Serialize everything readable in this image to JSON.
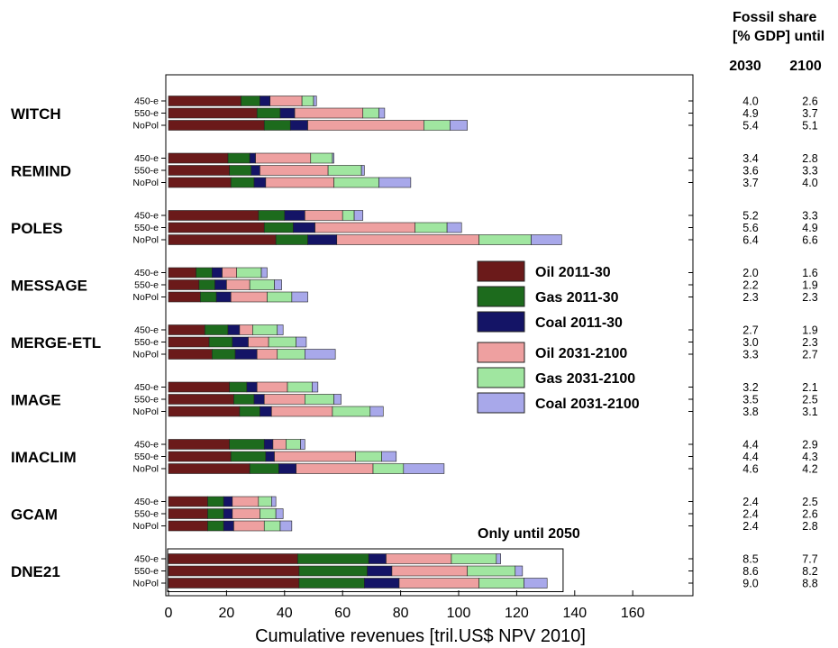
{
  "chart_data": {
    "type": "bar",
    "orientation": "horizontal",
    "stacked": true,
    "xlabel": "Cumulative revenues [tril.US$ NPV 2010]",
    "xlim": [
      0,
      170
    ],
    "x_ticks": [
      "0",
      "20",
      "40",
      "60",
      "80",
      "100",
      "120",
      "140",
      "160"
    ],
    "x_tick_values": [
      0,
      20,
      40,
      60,
      80,
      100,
      120,
      140,
      160
    ],
    "grid": false,
    "legend_position": "center-right",
    "scenarios": [
      "450-e",
      "550-e",
      "NoPol"
    ],
    "series": [
      {
        "name": "Oil 2011-30",
        "color": "#6b1a1a"
      },
      {
        "name": "Gas 2011-30",
        "color": "#1d6b1d"
      },
      {
        "name": "Coal 2011-30",
        "color": "#141466"
      },
      {
        "name": "Oil 2031-2100",
        "color": "#eea0a0"
      },
      {
        "name": "Gas 2031-2100",
        "color": "#a0e6a0"
      },
      {
        "name": "Coal 2031-2100",
        "color": "#a8a8ea"
      }
    ],
    "models": [
      {
        "name": "WITCH",
        "bars": [
          {
            "scenario": "450-e",
            "values": [
              25,
              6.5,
              3.5,
              11,
              4,
              1
            ]
          },
          {
            "scenario": "550-e",
            "values": [
              30.5,
              8,
              5,
              23.5,
              5.5,
              2
            ]
          },
          {
            "scenario": "NoPol",
            "values": [
              33,
              9,
              6,
              40,
              9,
              6
            ]
          }
        ],
        "share": [
          [
            "4.0",
            "2.6"
          ],
          [
            "4.9",
            "3.7"
          ],
          [
            "5.4",
            "5.1"
          ]
        ]
      },
      {
        "name": "REMIND",
        "bars": [
          {
            "scenario": "450-e",
            "values": [
              20.5,
              7.5,
              2,
              19,
              7.5,
              0.5
            ]
          },
          {
            "scenario": "550-e",
            "values": [
              21,
              7.5,
              3,
              23.5,
              11.5,
              1
            ]
          },
          {
            "scenario": "NoPol",
            "values": [
              21.5,
              8,
              4,
              23.5,
              15.5,
              11
            ]
          }
        ],
        "share": [
          [
            "3.4",
            "2.8"
          ],
          [
            "3.6",
            "3.3"
          ],
          [
            "3.7",
            "4.0"
          ]
        ]
      },
      {
        "name": "POLES",
        "bars": [
          {
            "scenario": "450-e",
            "values": [
              31,
              9,
              7,
              13,
              4,
              3
            ]
          },
          {
            "scenario": "550-e",
            "values": [
              33,
              10,
              7.5,
              34.5,
              11,
              5
            ]
          },
          {
            "scenario": "NoPol",
            "values": [
              37,
              11,
              10,
              49,
              18,
              10.5
            ]
          }
        ],
        "share": [
          [
            "5.2",
            "3.3"
          ],
          [
            "5.6",
            "4.9"
          ],
          [
            "6.4",
            "6.6"
          ]
        ]
      },
      {
        "name": "MESSAGE",
        "bars": [
          {
            "scenario": "450-e",
            "values": [
              9.5,
              5.5,
              3.5,
              5,
              8.5,
              2
            ]
          },
          {
            "scenario": "550-e",
            "values": [
              10.5,
              5.5,
              4,
              8,
              8.5,
              2.5
            ]
          },
          {
            "scenario": "NoPol",
            "values": [
              11,
              5.5,
              5,
              12.5,
              8.5,
              5.5
            ]
          }
        ],
        "share": [
          [
            "2.0",
            "1.6"
          ],
          [
            "2.2",
            "1.9"
          ],
          [
            "2.3",
            "2.3"
          ]
        ]
      },
      {
        "name": "MERGE-ETL",
        "bars": [
          {
            "scenario": "450-e",
            "values": [
              12.5,
              8,
              4,
              4.5,
              8.5,
              2
            ]
          },
          {
            "scenario": "550-e",
            "values": [
              14,
              8,
              5.5,
              7,
              9.5,
              3.5
            ]
          },
          {
            "scenario": "NoPol",
            "values": [
              15,
              8,
              7.5,
              7,
              9.5,
              10.5
            ]
          }
        ],
        "share": [
          [
            "2.7",
            "1.9"
          ],
          [
            "3.0",
            "2.3"
          ],
          [
            "3.3",
            "2.7"
          ]
        ]
      },
      {
        "name": "IMAGE",
        "bars": [
          {
            "scenario": "450-e",
            "values": [
              21,
              6,
              3.5,
              10.5,
              8.5,
              2
            ]
          },
          {
            "scenario": "550-e",
            "values": [
              22.5,
              7,
              3.5,
              14,
              10,
              2.5
            ]
          },
          {
            "scenario": "NoPol",
            "values": [
              24.5,
              7,
              4,
              21,
              13,
              4.5
            ]
          }
        ],
        "share": [
          [
            "3.2",
            "2.1"
          ],
          [
            "3.5",
            "2.5"
          ],
          [
            "3.8",
            "3.1"
          ]
        ]
      },
      {
        "name": "IMACLIM",
        "bars": [
          {
            "scenario": "450-e",
            "values": [
              21,
              12,
              3,
              4.5,
              5,
              1.5
            ]
          },
          {
            "scenario": "550-e",
            "values": [
              21.5,
              12,
              3,
              28,
              9,
              5
            ]
          },
          {
            "scenario": "NoPol",
            "values": [
              28,
              10,
              6,
              26.5,
              10.5,
              14
            ]
          }
        ],
        "share": [
          [
            "4.4",
            "2.9"
          ],
          [
            "4.4",
            "4.3"
          ],
          [
            "4.6",
            "4.2"
          ]
        ]
      },
      {
        "name": "GCAM",
        "bars": [
          {
            "scenario": "450-e",
            "values": [
              13.5,
              5.5,
              3,
              9,
              4.5,
              1.5
            ]
          },
          {
            "scenario": "550-e",
            "values": [
              13.5,
              5.5,
              3,
              9.5,
              5.5,
              2.5
            ]
          },
          {
            "scenario": "NoPol",
            "values": [
              13.5,
              5.5,
              3.5,
              10.5,
              5.5,
              4
            ]
          }
        ],
        "share": [
          [
            "2.4",
            "2.5"
          ],
          [
            "2.4",
            "2.6"
          ],
          [
            "2.4",
            "2.8"
          ]
        ]
      },
      {
        "name": "DNE21",
        "bars": [
          {
            "scenario": "450-e",
            "values": [
              44.5,
              24.5,
              6,
              22.5,
              15.5,
              1.5
            ]
          },
          {
            "scenario": "550-e",
            "values": [
              45,
              23.5,
              8.5,
              26,
              16.5,
              2.5
            ]
          },
          {
            "scenario": "NoPol",
            "values": [
              45,
              22.5,
              12,
              27.5,
              15.5,
              8
            ]
          }
        ],
        "share": [
          [
            "8.5",
            "7.7"
          ],
          [
            "8.6",
            "8.2"
          ],
          [
            "9.0",
            "8.8"
          ]
        ]
      }
    ],
    "annotation": {
      "text": "Only until 2050",
      "model": "DNE21",
      "x_max": 136
    },
    "fossil_share": {
      "title_line1": "Fossil share",
      "title_line2": "[% GDP] until",
      "columns": [
        "2030",
        "2100"
      ]
    }
  }
}
